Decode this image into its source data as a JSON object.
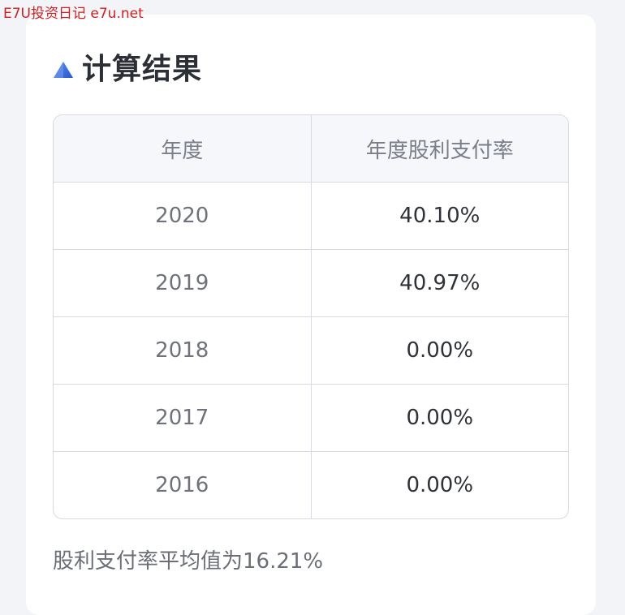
{
  "watermark": "E7U投资日记 e7u.net",
  "section": {
    "title": "计算结果",
    "icon": "triangle-icon",
    "icon_color": "#3f74e6"
  },
  "table": {
    "headers": [
      "年度",
      "年度股利支付率"
    ],
    "rows": [
      {
        "year": "2020",
        "ratio": "40.10%"
      },
      {
        "year": "2019",
        "ratio": "40.97%"
      },
      {
        "year": "2018",
        "ratio": "0.00%"
      },
      {
        "year": "2017",
        "ratio": "0.00%"
      },
      {
        "year": "2016",
        "ratio": "0.00%"
      }
    ]
  },
  "summary": "股利支付率平均值为16.21%"
}
